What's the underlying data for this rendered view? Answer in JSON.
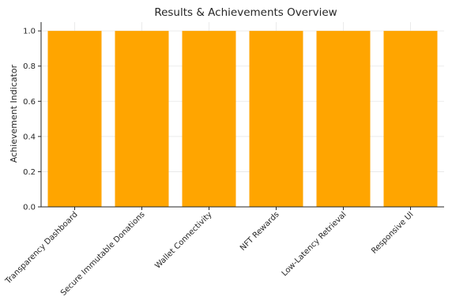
{
  "colors": {
    "bar": "#FFA500",
    "grid": "#e6e6e6",
    "axis": "#262626"
  },
  "chart_data": {
    "type": "bar",
    "title": "Results & Achievements Overview",
    "xlabel": "",
    "ylabel": "Achievement Indicator",
    "categories": [
      "Transparency Dashboard",
      "Secure Immutable Donations",
      "Wallet Connectivity",
      "NFT Rewards",
      "Low-Latency Retrieval",
      "Responsive UI"
    ],
    "values": [
      1,
      1,
      1,
      1,
      1,
      1
    ],
    "ylim": [
      0,
      1.05
    ],
    "yticks": [
      0.0,
      0.2,
      0.4,
      0.6,
      0.8,
      1.0
    ],
    "ytick_labels": [
      "0.0",
      "0.2",
      "0.4",
      "0.6",
      "0.8",
      "1.0"
    ],
    "grid": true,
    "legend": "none"
  }
}
